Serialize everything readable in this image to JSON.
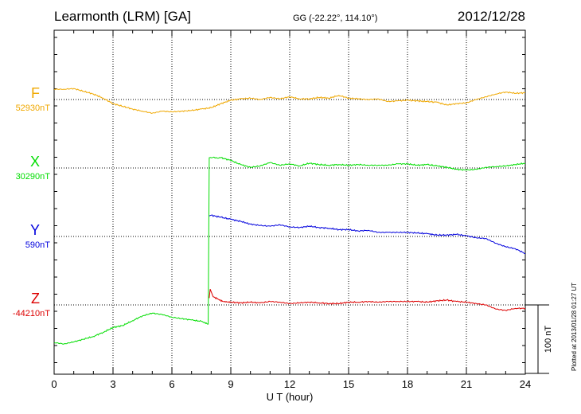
{
  "header": {
    "station": "Learmonth (LRM)  [GA]",
    "coords": "GG (-22.22°, 114.10°)",
    "date": "2012/12/28"
  },
  "footer": {
    "plotted": "Plotted at 2013/01/28 01:27 UT"
  },
  "chart_data": {
    "type": "line",
    "xlabel": "U T (hour)",
    "xlim": [
      0,
      24
    ],
    "xticks": [
      0,
      3,
      6,
      9,
      12,
      15,
      18,
      21,
      24
    ],
    "xtick_labels": [
      "0",
      "3",
      "6",
      "9",
      "12",
      "15",
      "18",
      "21",
      "24"
    ],
    "scale_bar_label": "100 nT",
    "scale_bar_nT": 100,
    "grid": true,
    "series": [
      {
        "name": "F",
        "baseline_label": "52930nT",
        "baseline_nT": 52930,
        "color": "#f0a800",
        "x": [
          0,
          0.5,
          1.0,
          1.5,
          2.0,
          2.5,
          3.0,
          3.5,
          4.0,
          4.5,
          5.0,
          5.5,
          6.0,
          6.5,
          7.0,
          7.5,
          8.0,
          8.5,
          9.0,
          9.5,
          10.0,
          10.5,
          11.0,
          11.5,
          12.0,
          12.5,
          13.0,
          13.5,
          14.0,
          14.5,
          15.0,
          15.5,
          16.0,
          16.5,
          17.0,
          17.5,
          18.0,
          18.5,
          19.0,
          19.5,
          20.0,
          20.5,
          21.0,
          21.5,
          22.0,
          22.5,
          23.0,
          23.5,
          24.0
        ],
        "values": [
          52945,
          52945,
          52946,
          52942,
          52938,
          52932,
          52924,
          52920,
          52916,
          52913,
          52910,
          52913,
          52912,
          52913,
          52914,
          52916,
          52918,
          52924,
          52929,
          52931,
          52932,
          52930,
          52933,
          52931,
          52934,
          52931,
          52931,
          52933,
          52932,
          52936,
          52932,
          52931,
          52930,
          52931,
          52927,
          52928,
          52929,
          52928,
          52927,
          52926,
          52922,
          52924,
          52925,
          52930,
          52934,
          52938,
          52941,
          52939,
          52940
        ]
      },
      {
        "name": "X",
        "baseline_label": "30290nT",
        "baseline_nT": 30290,
        "color": "#00dd00",
        "x": [
          0,
          0.5,
          1.0,
          1.5,
          2.0,
          2.5,
          3.0,
          3.5,
          4.0,
          4.5,
          5.0,
          5.5,
          6.0,
          6.5,
          7.0,
          7.5,
          7.85,
          7.9,
          8.5,
          9.0,
          9.5,
          10.0,
          10.5,
          11.0,
          11.5,
          12.0,
          12.5,
          13.0,
          13.5,
          14.0,
          14.5,
          15.0,
          15.5,
          16.0,
          16.5,
          17.0,
          17.5,
          18.0,
          18.5,
          19.0,
          19.5,
          20.0,
          20.5,
          21.0,
          21.5,
          22.0,
          22.5,
          23.0,
          23.5,
          24.0
        ],
        "values": [
          30035,
          30033,
          30036,
          30040,
          30044,
          30050,
          30057,
          30060,
          30067,
          30074,
          30078,
          30076,
          30072,
          30070,
          30068,
          30066,
          30062,
          30305,
          30305,
          30301,
          30295,
          30291,
          30293,
          30298,
          30294,
          30296,
          30293,
          30297,
          30295,
          30294,
          30295,
          30294,
          30295,
          30294,
          30294,
          30294,
          30296,
          30296,
          30294,
          30295,
          30293,
          30291,
          30288,
          30287,
          30288,
          30291,
          30292,
          30293,
          30295,
          30297
        ]
      },
      {
        "name": "Y",
        "baseline_label": "590nT",
        "baseline_nT": 590,
        "color": "#0000dd",
        "x": [
          7.9,
          8.0,
          8.5,
          9.0,
          9.5,
          10.0,
          10.5,
          11.0,
          11.5,
          12.0,
          12.5,
          13.0,
          13.5,
          14.0,
          14.5,
          15.0,
          15.5,
          16.0,
          16.5,
          17.0,
          17.5,
          18.0,
          18.5,
          19.0,
          19.5,
          20.0,
          20.5,
          21.0,
          21.5,
          22.0,
          22.5,
          23.0,
          23.5,
          24.0
        ],
        "values": [
          620,
          621,
          618,
          615,
          612,
          608,
          606,
          605,
          607,
          604,
          603,
          605,
          603,
          602,
          600,
          600,
          598,
          599,
          596,
          596,
          596,
          596,
          595,
          594,
          592,
          592,
          593,
          591,
          588,
          587,
          580,
          575,
          572,
          565
        ]
      },
      {
        "name": "Z",
        "baseline_label": "-44210nT",
        "baseline_nT": -44210,
        "color": "#dd0000",
        "x": [
          7.9,
          7.95,
          8.1,
          8.3,
          8.6,
          9.0,
          9.5,
          10.0,
          10.5,
          11.0,
          11.5,
          12.0,
          12.5,
          13.0,
          13.5,
          14.0,
          14.5,
          15.0,
          15.5,
          16.0,
          16.5,
          17.0,
          17.5,
          18.0,
          18.5,
          19.0,
          19.5,
          20.0,
          20.5,
          21.0,
          21.5,
          22.0,
          22.5,
          23.0,
          23.5,
          24.0
        ],
        "values": [
          -44200,
          -44187,
          -44198,
          -44201,
          -44205,
          -44206,
          -44207,
          -44206,
          -44207,
          -44205,
          -44206,
          -44208,
          -44207,
          -44206,
          -44207,
          -44208,
          -44208,
          -44206,
          -44206,
          -44205,
          -44206,
          -44205,
          -44205,
          -44205,
          -44205,
          -44206,
          -44204,
          -44203,
          -44205,
          -44206,
          -44208,
          -44210,
          -44216,
          -44218,
          -44215,
          -44215
        ]
      }
    ]
  }
}
